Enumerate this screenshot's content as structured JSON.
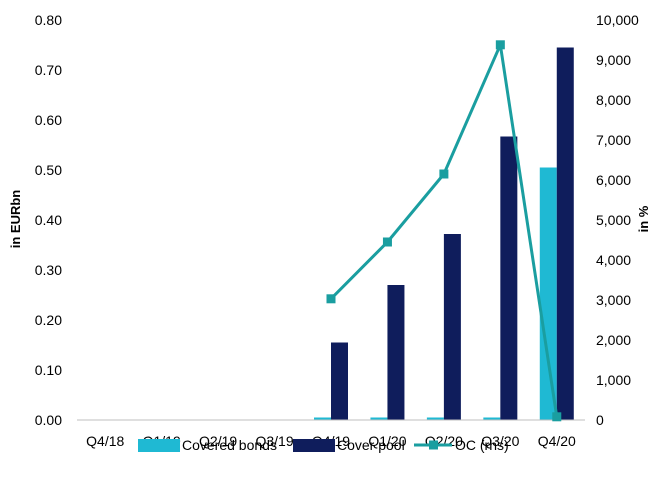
{
  "chart_data": {
    "type": "bar",
    "categories": [
      "Q4/18",
      "Q1/19",
      "Q2/19",
      "Q3/19",
      "Q4/19",
      "Q1/20",
      "Q2/20",
      "Q3/20",
      "Q4/20"
    ],
    "series": [
      {
        "name": "Covered bonds",
        "type": "bar",
        "axis": "left",
        "color": "#1fb9d3",
        "values": [
          0,
          0,
          0,
          0,
          0.005,
          0.005,
          0.005,
          0.005,
          0.505
        ]
      },
      {
        "name": "Cover pool",
        "type": "bar",
        "axis": "left",
        "color": "#0f1d5c",
        "values": [
          0,
          0,
          0,
          0,
          0.155,
          0.27,
          0.372,
          0.567,
          0.745
        ]
      },
      {
        "name": "OC (rhs)",
        "type": "line",
        "axis": "right",
        "color": "#1a9ea0",
        "values": [
          null,
          null,
          null,
          null,
          3030,
          4450,
          6150,
          9380,
          80
        ]
      }
    ],
    "ylabel": "in EURbn",
    "y2label": "in %",
    "ylim": [
      0,
      0.8
    ],
    "y2lim": [
      0,
      10000
    ],
    "yticks": [
      "0.00",
      "0.10",
      "0.20",
      "0.30",
      "0.40",
      "0.50",
      "0.60",
      "0.70",
      "0.80"
    ],
    "y2ticks": [
      "0",
      "1,000",
      "2,000",
      "3,000",
      "4,000",
      "5,000",
      "6,000",
      "7,000",
      "8,000",
      "9,000",
      "10,000"
    ],
    "grid": false,
    "legend_position": "bottom"
  }
}
